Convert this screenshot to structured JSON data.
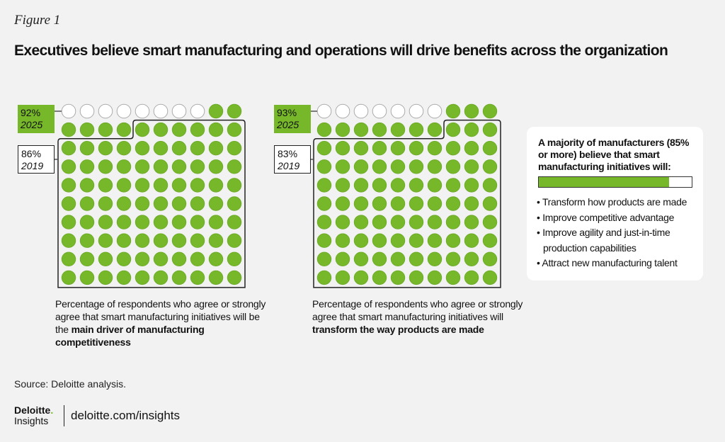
{
  "figure_label": "Figure 1",
  "title": "Executives believe smart manufacturing and operations will drive benefits across the organization",
  "chart_data": [
    {
      "type": "waffle",
      "grid": [
        10,
        10
      ],
      "value_2025": 92,
      "label_2025": "92%",
      "year_2025": "2025",
      "value_2019": 86,
      "label_2019": "86%",
      "year_2019": "2019",
      "caption_plain": "Percentage of respondents who agree or strongly agree that smart manufacturing initiatives will be the ",
      "caption_bold": "main driver of manufacturing competitiveness"
    },
    {
      "type": "waffle",
      "grid": [
        10,
        10
      ],
      "value_2025": 93,
      "label_2025": "93%",
      "year_2025": "2025",
      "value_2019": 83,
      "label_2019": "83%",
      "year_2019": "2019",
      "caption_plain": "Percentage of respondents who agree or strongly agree that smart manufacturing initiatives will ",
      "caption_bold": "transform the way products are made"
    }
  ],
  "panel": {
    "title": "A majority of manufacturers (85% or more) believe that smart manufacturing initiatives will:",
    "bar_percent": 85,
    "items": [
      "Transform how products are made",
      "Improve competitive advantage",
      "Improve agility and just-in-time production capabilities",
      "Attract new manufacturing talent"
    ]
  },
  "colors": {
    "green": "#76b82a",
    "empty": "#ffffff",
    "outline": "#222222"
  },
  "source": "Source: Deloitte analysis.",
  "logo": {
    "brand": "Deloitte",
    "dot": ".",
    "sub": "Insights"
  },
  "url": "deloitte.com/insights"
}
